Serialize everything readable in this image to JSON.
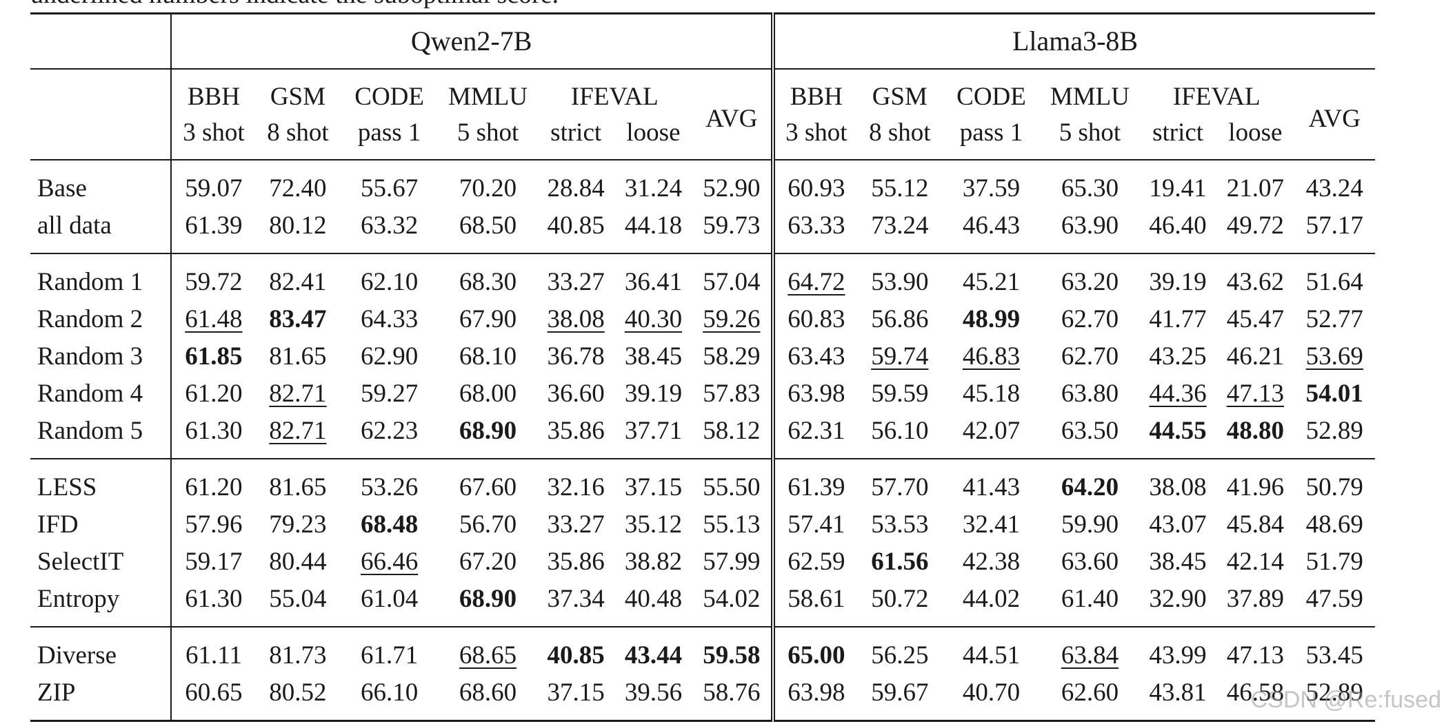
{
  "caption_fragment": "underlined numbers indicate the suboptimal score.",
  "groups": [
    "Qwen2-7B",
    "Llama3-8B"
  ],
  "header": {
    "bbh": "BBH",
    "bbh_sub": "3 shot",
    "gsm": "GSM",
    "gsm_sub": "8 shot",
    "code": "CODE",
    "code_sub": "pass 1",
    "mmlu": "MMLU",
    "mmlu_sub": "5 shot",
    "ifeval": "IFEVAL",
    "ifeval_strict": "strict",
    "ifeval_loose": "loose",
    "avg": "AVG"
  },
  "rows": [
    {
      "method": "Base",
      "values": [
        "59.07",
        "72.40",
        "55.67",
        "70.20",
        "28.84",
        "31.24",
        "52.90",
        "60.93",
        "55.12",
        "37.59",
        "65.30",
        "19.41",
        "21.07",
        "43.24"
      ],
      "bold": [],
      "under": []
    },
    {
      "method": "all data",
      "values": [
        "61.39",
        "80.12",
        "63.32",
        "68.50",
        "40.85",
        "44.18",
        "59.73",
        "63.33",
        "73.24",
        "46.43",
        "63.90",
        "46.40",
        "49.72",
        "57.17"
      ],
      "bold": [],
      "under": []
    },
    {
      "method": "Random 1",
      "values": [
        "59.72",
        "82.41",
        "62.10",
        "68.30",
        "33.27",
        "36.41",
        "57.04",
        "64.72",
        "53.90",
        "45.21",
        "63.20",
        "39.19",
        "43.62",
        "51.64"
      ],
      "bold": [],
      "under": [
        7
      ]
    },
    {
      "method": "Random 2",
      "values": [
        "61.48",
        "83.47",
        "64.33",
        "67.90",
        "38.08",
        "40.30",
        "59.26",
        "60.83",
        "56.86",
        "48.99",
        "62.70",
        "41.77",
        "45.47",
        "52.77"
      ],
      "bold": [
        1,
        9
      ],
      "under": [
        0,
        4,
        5,
        6
      ]
    },
    {
      "method": "Random 3",
      "values": [
        "61.85",
        "81.65",
        "62.90",
        "68.10",
        "36.78",
        "38.45",
        "58.29",
        "63.43",
        "59.74",
        "46.83",
        "62.70",
        "43.25",
        "46.21",
        "53.69"
      ],
      "bold": [
        0
      ],
      "under": [
        8,
        9,
        13
      ]
    },
    {
      "method": "Random 4",
      "values": [
        "61.20",
        "82.71",
        "59.27",
        "68.00",
        "36.60",
        "39.19",
        "57.83",
        "63.98",
        "59.59",
        "45.18",
        "63.80",
        "44.36",
        "47.13",
        "54.01"
      ],
      "bold": [
        13
      ],
      "under": [
        1,
        11,
        12
      ]
    },
    {
      "method": "Random 5",
      "values": [
        "61.30",
        "82.71",
        "62.23",
        "68.90",
        "35.86",
        "37.71",
        "58.12",
        "62.31",
        "56.10",
        "42.07",
        "63.50",
        "44.55",
        "48.80",
        "52.89"
      ],
      "bold": [
        3,
        11,
        12
      ],
      "under": [
        1
      ]
    },
    {
      "method": "LESS",
      "values": [
        "61.20",
        "81.65",
        "53.26",
        "67.60",
        "32.16",
        "37.15",
        "55.50",
        "61.39",
        "57.70",
        "41.43",
        "64.20",
        "38.08",
        "41.96",
        "50.79"
      ],
      "bold": [
        10
      ],
      "under": []
    },
    {
      "method": "IFD",
      "values": [
        "57.96",
        "79.23",
        "68.48",
        "56.70",
        "33.27",
        "35.12",
        "55.13",
        "57.41",
        "53.53",
        "32.41",
        "59.90",
        "43.07",
        "45.84",
        "48.69"
      ],
      "bold": [
        2
      ],
      "under": []
    },
    {
      "method": "SelectIT",
      "values": [
        "59.17",
        "80.44",
        "66.46",
        "67.20",
        "35.86",
        "38.82",
        "57.99",
        "62.59",
        "61.56",
        "42.38",
        "63.60",
        "38.45",
        "42.14",
        "51.79"
      ],
      "bold": [
        8
      ],
      "under": [
        2
      ]
    },
    {
      "method": "Entropy",
      "values": [
        "61.30",
        "55.04",
        "61.04",
        "68.90",
        "37.34",
        "40.48",
        "54.02",
        "58.61",
        "50.72",
        "44.02",
        "61.40",
        "32.90",
        "37.89",
        "47.59"
      ],
      "bold": [
        3
      ],
      "under": []
    },
    {
      "method": "Diverse",
      "values": [
        "61.11",
        "81.73",
        "61.71",
        "68.65",
        "40.85",
        "43.44",
        "59.58",
        "65.00",
        "56.25",
        "44.51",
        "63.84",
        "43.99",
        "47.13",
        "53.45"
      ],
      "bold": [
        4,
        5,
        6,
        7
      ],
      "under": [
        3,
        10
      ]
    },
    {
      "method": "ZIP",
      "values": [
        "60.65",
        "80.52",
        "66.10",
        "68.60",
        "37.15",
        "39.56",
        "58.76",
        "63.98",
        "59.67",
        "40.70",
        "62.60",
        "43.81",
        "46.58",
        "52.89"
      ],
      "bold": [],
      "under": []
    }
  ],
  "watermark": "CSDN @Re:fused"
}
